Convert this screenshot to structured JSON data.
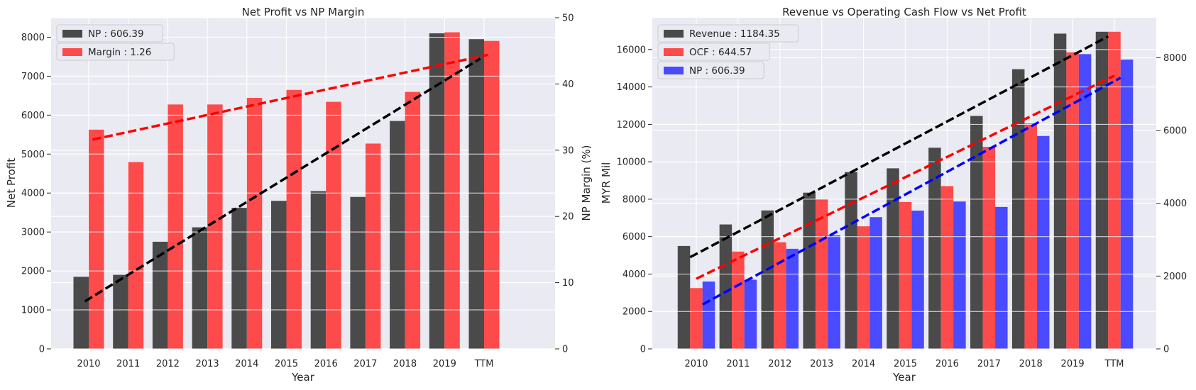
{
  "chart_data": [
    {
      "type": "bar",
      "title": "Net Profit vs NP Margin",
      "xlabel": "Year",
      "ylabel": "Net Profit",
      "y2label": "NP Margin (%)",
      "categories": [
        "2010",
        "2011",
        "2012",
        "2013",
        "2014",
        "2015",
        "2016",
        "2017",
        "2018",
        "2019",
        "TTM"
      ],
      "ylim": [
        0,
        8500
      ],
      "y2lim": [
        0,
        50
      ],
      "yticks": [
        0,
        1000,
        2000,
        3000,
        4000,
        5000,
        6000,
        7000,
        8000
      ],
      "y2ticks": [
        0,
        10,
        20,
        30,
        40,
        50
      ],
      "legend_position": "top-left",
      "grid": true,
      "series": [
        {
          "name": "NP : 606.39",
          "axis": "left",
          "color": "#333333",
          "values": [
            1850,
            1900,
            2750,
            3120,
            3620,
            3800,
            4050,
            3900,
            5850,
            8100,
            7950
          ],
          "trend": [
            1220,
            7450
          ]
        },
        {
          "name": "Margin : 1.26",
          "axis": "right",
          "color": "#ff3333",
          "values": [
            33.1,
            28.2,
            36.9,
            36.9,
            37.9,
            39.1,
            37.3,
            31.0,
            38.8,
            47.8,
            46.5
          ],
          "trend": [
            31.6,
            44.4
          ]
        }
      ]
    },
    {
      "type": "bar",
      "title": "Revenue vs Operating Cash Flow vs Net Profit",
      "xlabel": "Year",
      "ylabel": "MYR Mil",
      "categories": [
        "2010",
        "2011",
        "2012",
        "2013",
        "2014",
        "2015",
        "2016",
        "2017",
        "2018",
        "2019",
        "TTM"
      ],
      "ylim": [
        0,
        17700
      ],
      "y2lim": [
        0,
        9100
      ],
      "yticks": [
        0,
        2000,
        4000,
        6000,
        8000,
        10000,
        12000,
        14000,
        16000
      ],
      "y2ticks": [
        0,
        2000,
        4000,
        6000,
        8000
      ],
      "legend_position": "top-left",
      "grid": true,
      "series": [
        {
          "name": "Revenue : 1184.35",
          "axis": "left",
          "color": "#333333",
          "values": [
            5500,
            6650,
            7400,
            8350,
            9450,
            9650,
            10750,
            12450,
            14950,
            16850,
            16950
          ],
          "trend": [
            4900,
            16700
          ]
        },
        {
          "name": "OCF : 644.57",
          "axis": "left",
          "color": "#ff3333",
          "values": [
            3250,
            5200,
            5700,
            8000,
            6550,
            7850,
            8700,
            10800,
            12050,
            15850,
            16950
          ],
          "trend": [
            3750,
            14600
          ]
        },
        {
          "name": "NP : 606.39",
          "axis": "right",
          "color": "#3333ff",
          "values": [
            1850,
            1900,
            2750,
            3120,
            3620,
            3800,
            4050,
            3900,
            5850,
            8100,
            7950
          ],
          "trend": [
            1220,
            7450
          ]
        }
      ]
    }
  ]
}
